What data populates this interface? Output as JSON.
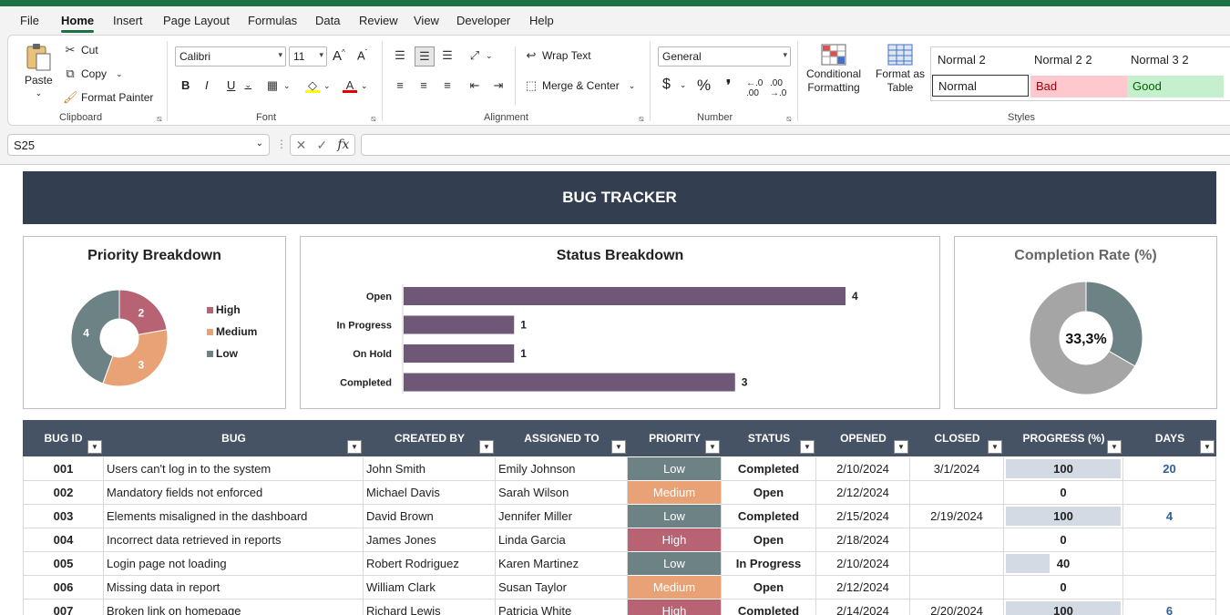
{
  "menu": [
    "File",
    "Home",
    "Insert",
    "Page Layout",
    "Formulas",
    "Data",
    "Review",
    "View",
    "Developer",
    "Help"
  ],
  "ribbon": {
    "clipboard": {
      "paste": "Paste",
      "cut": "Cut",
      "copy": "Copy",
      "format_painter": "Format Painter",
      "label": "Clipboard"
    },
    "font": {
      "name": "Calibri",
      "size": "11",
      "label": "Font",
      "bold": "B",
      "italic": "I",
      "underline": "U"
    },
    "alignment": {
      "wrap": "Wrap Text",
      "merge": "Merge & Center",
      "label": "Alignment"
    },
    "number": {
      "format": "General",
      "label": "Number",
      "currency": "$",
      "percent": "%",
      "comma": "❜"
    },
    "conditional": [
      "Conditional",
      "Formatting"
    ],
    "format_table": [
      "Format as",
      "Table"
    ],
    "styles": {
      "normal2": "Normal 2",
      "normal22": "Normal 2 2",
      "normal32": "Normal 3 2",
      "normal": "Normal",
      "bad": "Bad",
      "good": "Good",
      "label": "Styles"
    }
  },
  "formula_bar": {
    "name_box": "S25",
    "fx": "fx"
  },
  "title": "BUG TRACKER",
  "priority_chart": {
    "title": "Priority Breakdown",
    "chart_data": {
      "type": "pie",
      "categories": [
        "High",
        "Medium",
        "Low"
      ],
      "values": [
        2,
        3,
        4
      ],
      "colors": [
        "#b86374",
        "#e8a276",
        "#6d8285"
      ]
    }
  },
  "status_chart": {
    "title": "Status Breakdown",
    "chart_data": {
      "type": "bar",
      "categories": [
        "Open",
        "In Progress",
        "On Hold",
        "Completed"
      ],
      "values": [
        4,
        1,
        1,
        3
      ],
      "color": "#6e5777"
    }
  },
  "completion_chart": {
    "title": "Completion Rate (%)",
    "value_label": "33,3%",
    "chart_data": {
      "type": "pie",
      "values": [
        33.3,
        66.7
      ],
      "colors": [
        "#6d8285",
        "#a5a5a5"
      ]
    }
  },
  "table": {
    "headers": [
      "BUG ID",
      "BUG",
      "CREATED BY",
      "ASSIGNED TO",
      "PRIORITY",
      "STATUS",
      "OPENED",
      "CLOSED",
      "PROGRESS (%)",
      "DAYS"
    ],
    "rows": [
      {
        "id": "001",
        "bug": "Users can't log in to the system",
        "created": "John Smith",
        "assigned": "Emily Johnson",
        "priority": "Low",
        "status": "Completed",
        "opened": "2/10/2024",
        "closed": "3/1/2024",
        "progress": "100",
        "days": "20"
      },
      {
        "id": "002",
        "bug": "Mandatory fields not enforced",
        "created": "Michael Davis",
        "assigned": "Sarah Wilson",
        "priority": "Medium",
        "status": "Open",
        "opened": "2/12/2024",
        "closed": "",
        "progress": "0",
        "days": ""
      },
      {
        "id": "003",
        "bug": "Elements misaligned in the dashboard",
        "created": "David Brown",
        "assigned": "Jennifer Miller",
        "priority": "Low",
        "status": "Completed",
        "opened": "2/15/2024",
        "closed": "2/19/2024",
        "progress": "100",
        "days": "4"
      },
      {
        "id": "004",
        "bug": "Incorrect data retrieved in reports",
        "created": "James Jones",
        "assigned": "Linda Garcia",
        "priority": "High",
        "status": "Open",
        "opened": "2/18/2024",
        "closed": "",
        "progress": "0",
        "days": ""
      },
      {
        "id": "005",
        "bug": "Login page not loading",
        "created": "Robert Rodriguez",
        "assigned": "Karen Martinez",
        "priority": "Low",
        "status": "In Progress",
        "opened": "2/10/2024",
        "closed": "",
        "progress": "40",
        "days": ""
      },
      {
        "id": "006",
        "bug": "Missing data in report",
        "created": "William Clark",
        "assigned": "Susan Taylor",
        "priority": "Medium",
        "status": "Open",
        "opened": "2/12/2024",
        "closed": "",
        "progress": "0",
        "days": ""
      },
      {
        "id": "007",
        "bug": "Broken link on homepage",
        "created": "Richard Lewis",
        "assigned": "Patricia White",
        "priority": "High",
        "status": "Completed",
        "opened": "2/14/2024",
        "closed": "2/20/2024",
        "progress": "100",
        "days": "6"
      }
    ]
  },
  "colors": {
    "High": "#b86374",
    "Medium": "#e8a276",
    "Low": "#6d8285",
    "header": "#465364",
    "banner": "#333f50",
    "accent": "#1e7145"
  }
}
